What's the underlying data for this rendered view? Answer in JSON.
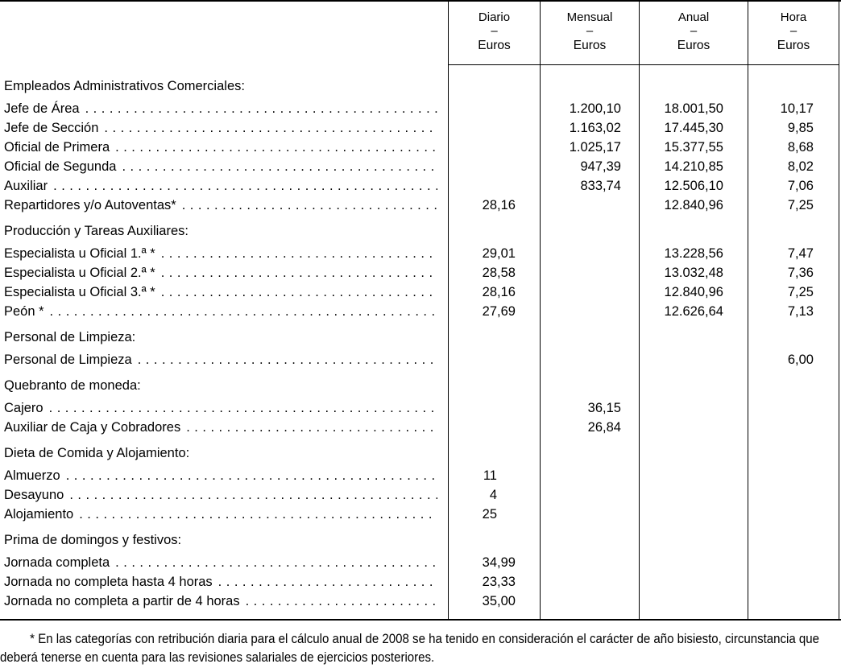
{
  "table": {
    "columns": [
      {
        "key": "diario",
        "label": "Diario",
        "dash": "–",
        "unit": "Euros"
      },
      {
        "key": "mensual",
        "label": "Mensual",
        "dash": "–",
        "unit": "Euros"
      },
      {
        "key": "anual",
        "label": "Anual",
        "dash": "–",
        "unit": "Euros"
      },
      {
        "key": "hora",
        "label": "Hora",
        "dash": "–",
        "unit": "Euros"
      }
    ],
    "rows": [
      {
        "type": "section",
        "label": "Empleados Administrativos Comerciales:"
      },
      {
        "type": "data",
        "label": "Jefe de Área",
        "diario": "",
        "mensual": "1.200,10",
        "anual": "18.001,50",
        "hora": "10,17"
      },
      {
        "type": "data",
        "label": "Jefe de Sección",
        "diario": "",
        "mensual": "1.163,02",
        "anual": "17.445,30",
        "hora": "9,85"
      },
      {
        "type": "data",
        "label": "Oficial de Primera",
        "diario": "",
        "mensual": "1.025,17",
        "anual": "15.377,55",
        "hora": "8,68"
      },
      {
        "type": "data",
        "label": "Oficial de Segunda",
        "diario": "",
        "mensual": "947,39",
        "anual": "14.210,85",
        "hora": "8,02"
      },
      {
        "type": "data",
        "label": "Auxiliar",
        "diario": "",
        "mensual": "833,74",
        "anual": "12.506,10",
        "hora": "7,06"
      },
      {
        "type": "data",
        "label": "Repartidores y/o Autoventas*",
        "diario": "28,16",
        "mensual": "",
        "anual": "12.840,96",
        "hora": "7,25"
      },
      {
        "type": "section",
        "label": "Producción y Tareas Auxiliares:"
      },
      {
        "type": "data",
        "label": "Especialista u Oficial 1.ª *",
        "diario": "29,01",
        "mensual": "",
        "anual": "13.228,56",
        "hora": "7,47"
      },
      {
        "type": "data",
        "label": "Especialista u Oficial 2.ª *",
        "diario": "28,58",
        "mensual": "",
        "anual": "13.032,48",
        "hora": "7,36"
      },
      {
        "type": "data",
        "label": "Especialista u Oficial 3.ª *",
        "diario": "28,16",
        "mensual": "",
        "anual": "12.840,96",
        "hora": "7,25"
      },
      {
        "type": "data",
        "label": "Peón *",
        "diario": "27,69",
        "mensual": "",
        "anual": "12.626,64",
        "hora": "7,13"
      },
      {
        "type": "section",
        "label": "Personal de Limpieza:"
      },
      {
        "type": "data",
        "label": "Personal de Limpieza",
        "diario": "",
        "mensual": "",
        "anual": "",
        "hora": "6,00"
      },
      {
        "type": "section",
        "label": "Quebranto de moneda:"
      },
      {
        "type": "data",
        "label": "Cajero",
        "diario": "",
        "mensual": "36,15",
        "anual": "",
        "hora": ""
      },
      {
        "type": "data",
        "label": "Auxiliar de Caja y Cobradores",
        "diario": "",
        "mensual": "26,84",
        "anual": "",
        "hora": ""
      },
      {
        "type": "section",
        "label": "Dieta de Comida y Alojamiento:"
      },
      {
        "type": "data",
        "label": "Almuerzo",
        "diario": "11",
        "mensual": "",
        "anual": "",
        "hora": ""
      },
      {
        "type": "data",
        "label": "Desayuno",
        "diario": "4",
        "mensual": "",
        "anual": "",
        "hora": ""
      },
      {
        "type": "data",
        "label": "Alojamiento",
        "diario": "25",
        "mensual": "",
        "anual": "",
        "hora": ""
      },
      {
        "type": "section",
        "label": "Prima de domingos y festivos:"
      },
      {
        "type": "data",
        "label": "Jornada completa",
        "diario": "34,99",
        "mensual": "",
        "anual": "",
        "hora": ""
      },
      {
        "type": "data",
        "label": "Jornada no completa hasta 4 horas",
        "diario": "23,33",
        "mensual": "",
        "anual": "",
        "hora": ""
      },
      {
        "type": "data",
        "label": "Jornada no completa a partir de 4 horas",
        "diario": "35,00",
        "mensual": "",
        "anual": "",
        "hora": ""
      }
    ]
  },
  "footnote": "* En las categorías con retribución diaria para el cálculo anual de 2008 se ha tenido en consideración el carácter de año bisiesto, circunstancia que deberá tenerse en cuenta para las revisiones salariales de ejercicios posteriores."
}
